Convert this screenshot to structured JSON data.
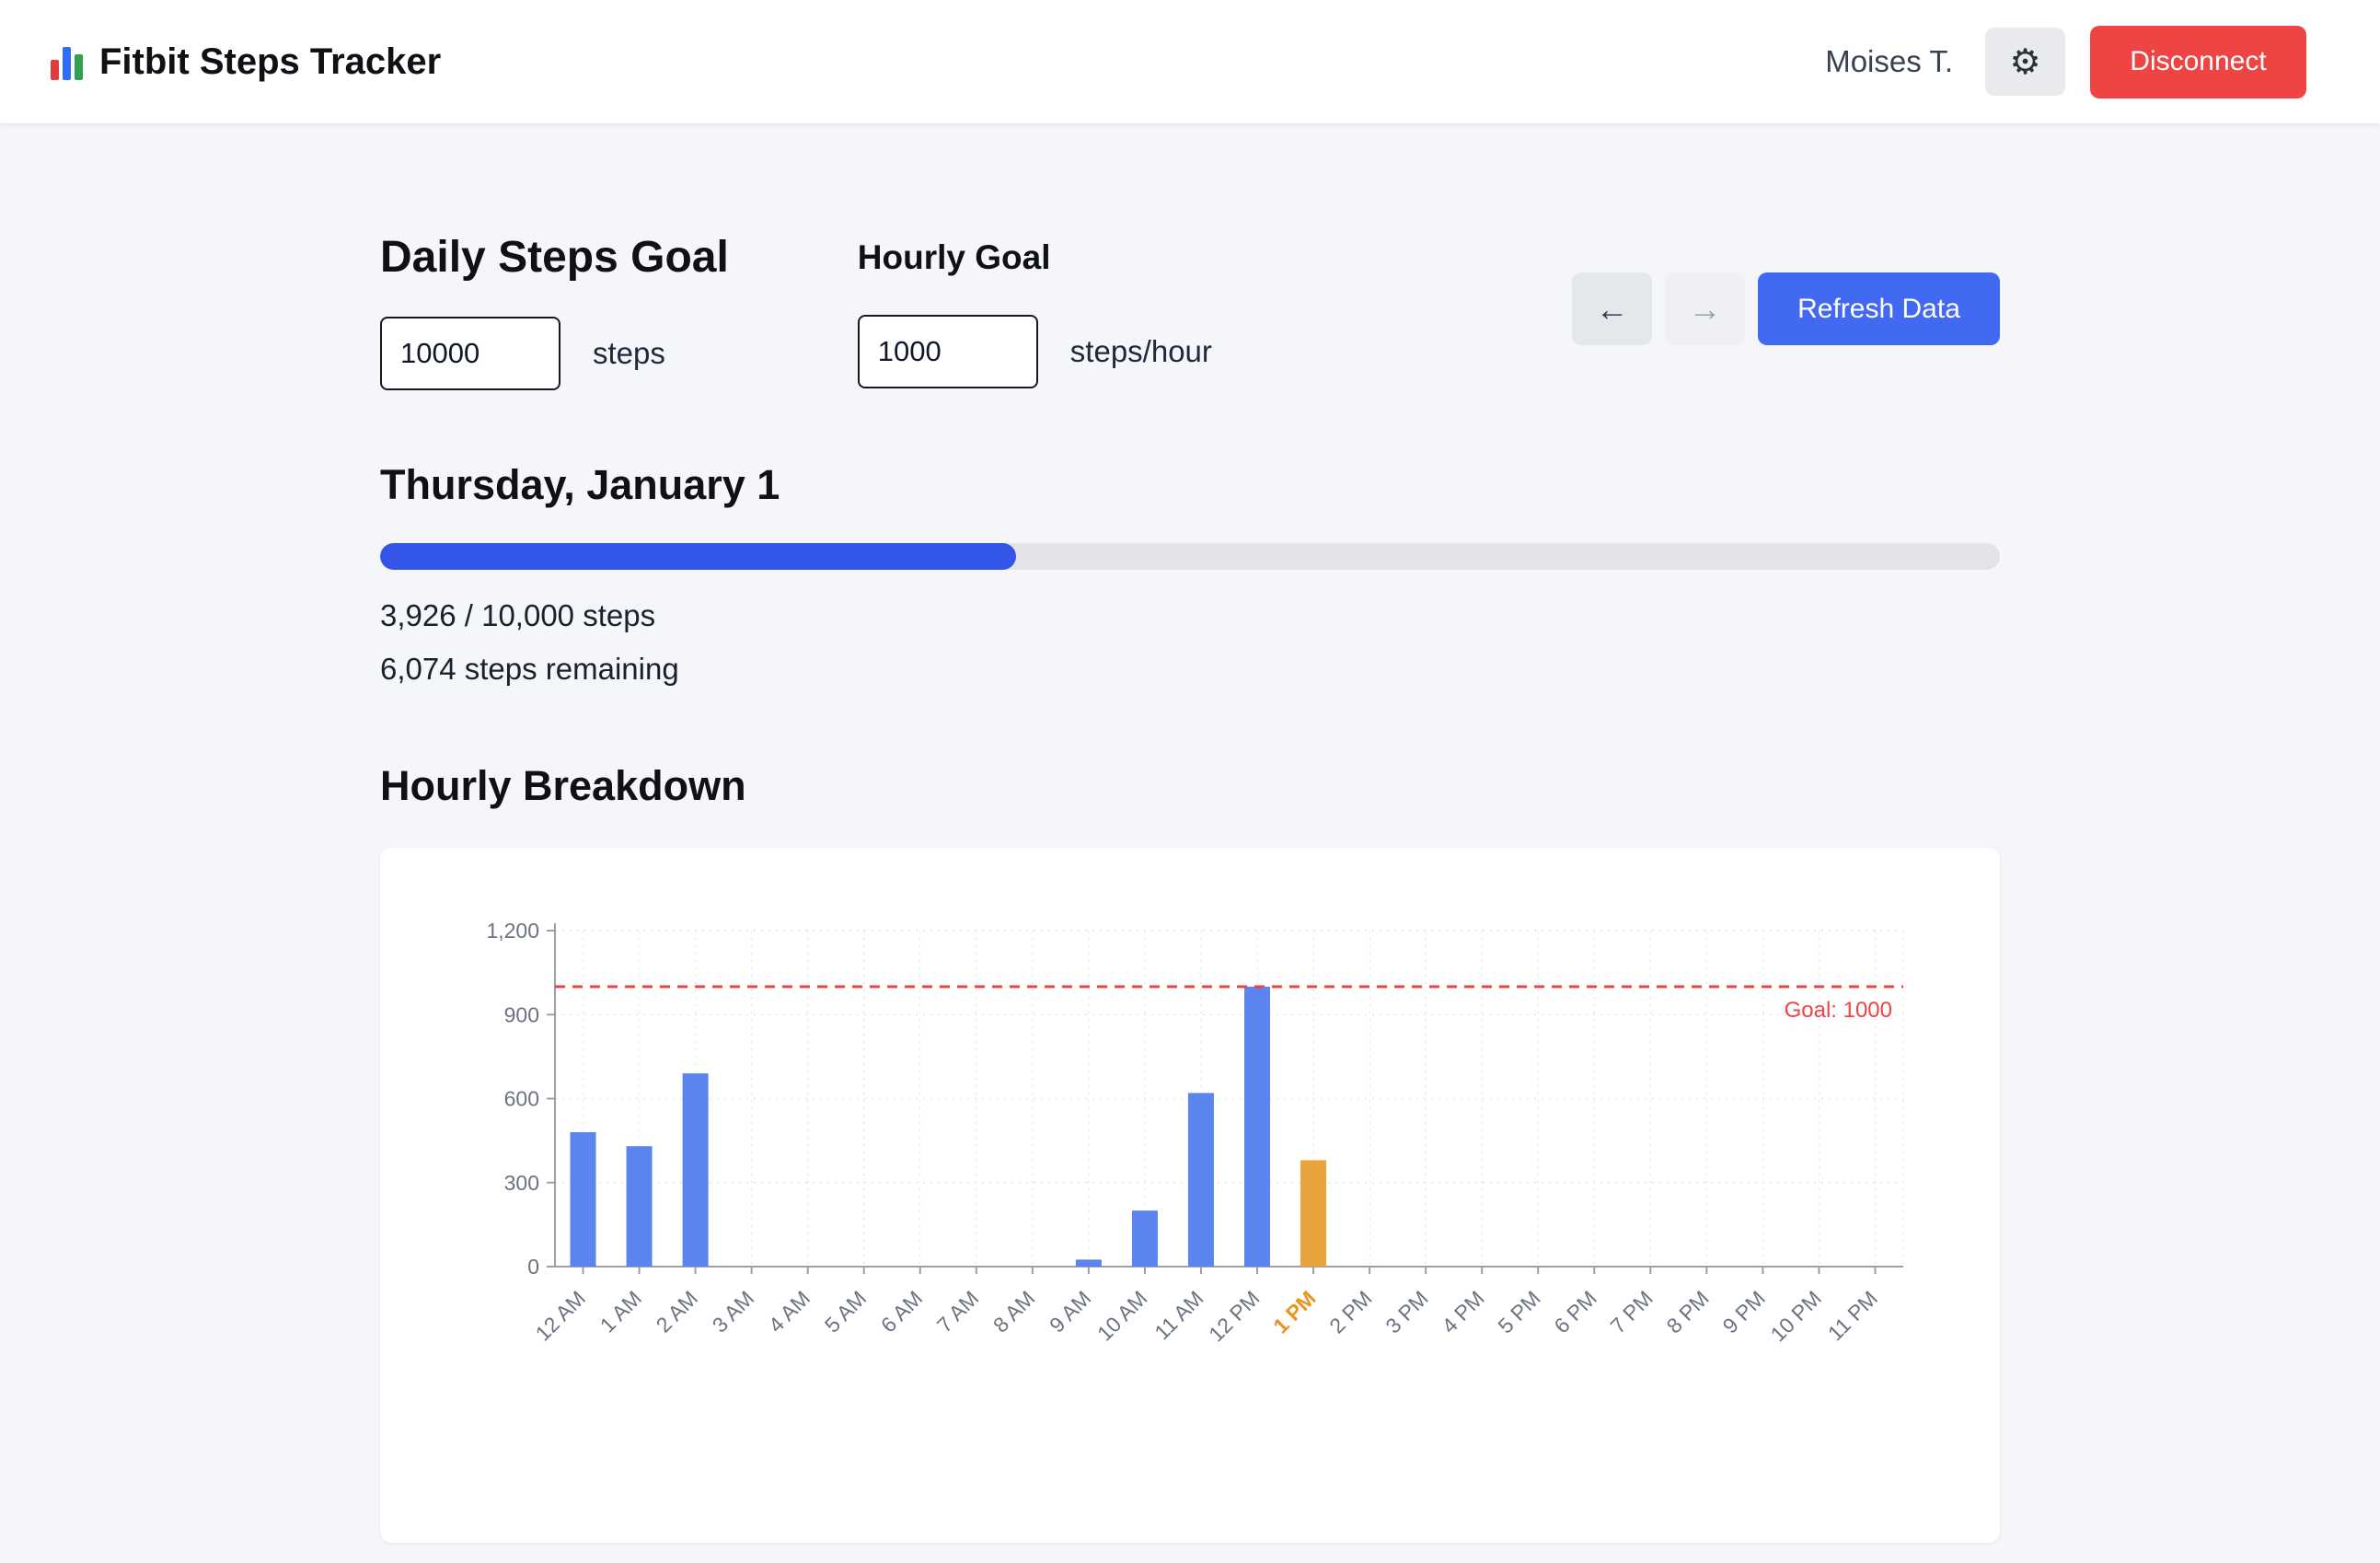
{
  "header": {
    "app_title": "Fitbit Steps Tracker",
    "user_name": "Moises T.",
    "settings_icon_glyph": "⚙",
    "disconnect_label": "Disconnect"
  },
  "controls": {
    "daily_goal_label": "Daily Steps Goal",
    "daily_goal_value": "10000",
    "daily_goal_unit": "steps",
    "hourly_goal_label": "Hourly Goal",
    "hourly_goal_value": "1000",
    "hourly_goal_unit": "steps/hour",
    "prev_arrow": "←",
    "next_arrow": "→",
    "refresh_label": "Refresh Data"
  },
  "day": {
    "title": "Thursday, January 1",
    "progress_percent": 39.26,
    "progress_text": "3,926 / 10,000 steps",
    "remaining_text": "6,074 steps remaining"
  },
  "section": {
    "hourly_breakdown_title": "Hourly Breakdown"
  },
  "colors": {
    "accent_blue": "#4169f1",
    "progress_blue": "#3355e8",
    "bar_blue": "#5b84ee",
    "bar_orange": "#e8a33c",
    "danger_red": "#ee4444",
    "goal_line_red": "#ef4444"
  },
  "chart_data": {
    "type": "bar",
    "title": "Hourly Breakdown",
    "categories": [
      "12 AM",
      "1 AM",
      "2 AM",
      "3 AM",
      "4 AM",
      "5 AM",
      "6 AM",
      "7 AM",
      "8 AM",
      "9 AM",
      "10 AM",
      "11 AM",
      "12 PM",
      "1 PM",
      "2 PM",
      "3 PM",
      "4 PM",
      "5 PM",
      "6 PM",
      "7 PM",
      "8 PM",
      "9 PM",
      "10 PM",
      "11 PM"
    ],
    "values": [
      480,
      430,
      690,
      0,
      0,
      0,
      0,
      0,
      0,
      25,
      200,
      620,
      1000,
      380,
      0,
      0,
      0,
      0,
      0,
      0,
      0,
      0,
      0,
      0
    ],
    "current_index": 13,
    "xlabel": "",
    "ylabel": "",
    "ylim": [
      0,
      1200
    ],
    "yticks": [
      0,
      300,
      600,
      900,
      1200
    ],
    "ytick_labels": [
      "0",
      "300",
      "600",
      "900",
      "1,200"
    ],
    "goal_line": {
      "value": 1000,
      "label": "Goal: 1000"
    },
    "grid": true,
    "legend": false
  }
}
